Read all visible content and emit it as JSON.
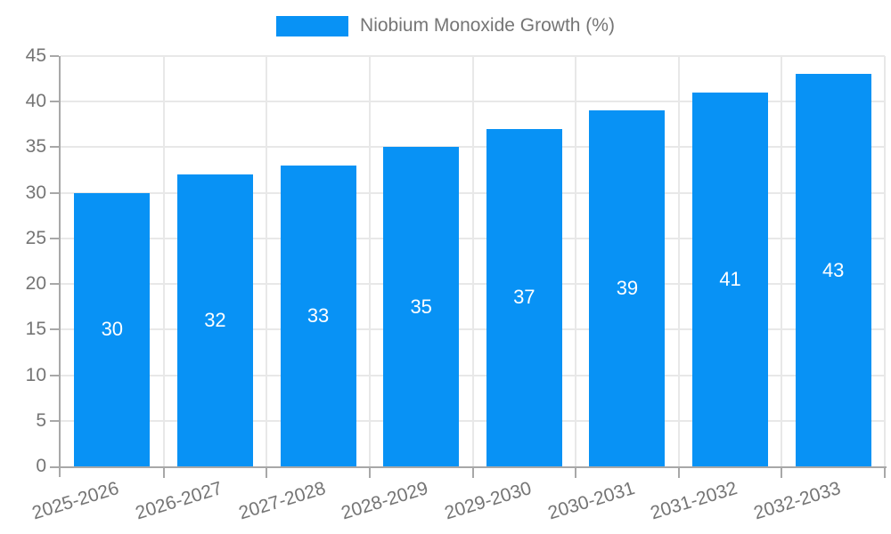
{
  "legend": {
    "label": "Niobium Monoxide Growth (%)"
  },
  "colors": {
    "bar": "#0892f5",
    "bar_label": "#ffffff",
    "grid": "#e8e8e8",
    "axis": "#a8a8a8",
    "text": "#757575",
    "background": "#ffffff"
  },
  "chart_data": {
    "type": "bar",
    "title": "",
    "series_name": "Niobium Monoxide Growth (%)",
    "categories": [
      "2025-2026",
      "2026-2027",
      "2027-2028",
      "2028-2029",
      "2029-2030",
      "2030-2031",
      "2031-2032",
      "2032-2033"
    ],
    "values": [
      30,
      32,
      33,
      35,
      37,
      39,
      41,
      43
    ],
    "bar_value_labels": [
      "30",
      "32",
      "33",
      "35",
      "37",
      "39",
      "41",
      "43"
    ],
    "xlabel": "",
    "ylabel": "",
    "ylim": [
      0,
      45
    ],
    "ytick_step": 5,
    "ytick_labels": [
      "0",
      "5",
      "10",
      "15",
      "20",
      "25",
      "30",
      "35",
      "40",
      "45"
    ],
    "grid": true,
    "legend_position": "top"
  }
}
